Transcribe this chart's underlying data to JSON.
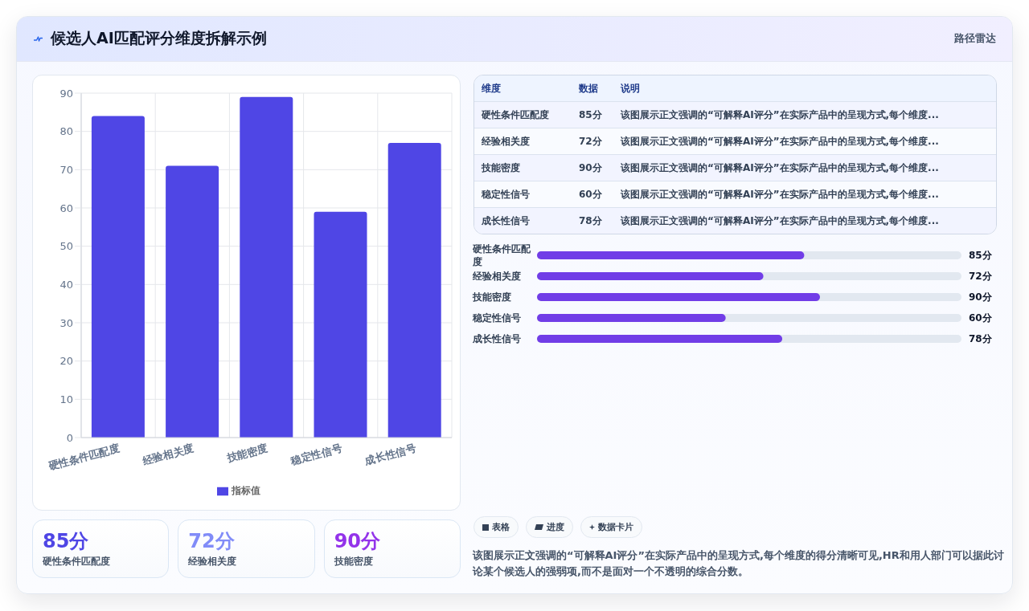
{
  "chart_data": [
    {
      "type": "other",
      "title": "候选人AI匹配评分维度拆解示例",
      "annotations": [
        "路径雷达"
      ]
    },
    {
      "type": "bar",
      "categories": [
        "硬性条件匹配度",
        "经验相关度",
        "技能密度",
        "稳定性信号",
        "成长性信号"
      ],
      "series": [
        {
          "name": "指标值",
          "color": "#4f46e5",
          "values": [
            84,
            71,
            89,
            59,
            77
          ]
        }
      ],
      "ylim": [
        0,
        90
      ],
      "yticks": [
        0,
        10,
        20,
        30,
        40,
        50,
        60,
        70,
        80,
        90
      ],
      "grid": true,
      "legend": "bottom"
    },
    {
      "type": "other",
      "categories": [
        "维度",
        "数据",
        "说明"
      ],
      "annotations": [
        "硬性条件匹配度",
        "85分",
        "该图展示正文强调的“可解释AI评分”在实际产品中的呈现方式,每个维度...",
        "经验相关度",
        "72分",
        "该图展示正文强调的“可解释AI评分”在实际产品中的呈现方式,每个维度...",
        "技能密度",
        "90分",
        "该图展示正文强调的“可解释AI评分”在实际产品中的呈现方式,每个维度...",
        "稳定性信号",
        "60分",
        "该图展示正文强调的“可解释AI评分”在实际产品中的呈现方式,每个维度...",
        "成长性信号",
        "78分",
        "该图展示正文强调的“可解释AI评分”在实际产品中的呈现方式,每个维度..."
      ]
    },
    {
      "type": "bar",
      "orientation": "horizontal",
      "categories": [
        "硬性条件匹配度",
        "经验相关度",
        "技能密度",
        "稳定性信号",
        "成长性信号"
      ],
      "values": [
        85,
        72,
        90,
        60,
        78
      ],
      "value_labels": [
        "85分",
        "72分",
        "90分",
        "60分",
        "78分"
      ],
      "color": "#713de7",
      "xlim": [
        0,
        135
      ]
    },
    {
      "type": "other",
      "categories": [
        "硬性条件匹配度",
        "经验相关度",
        "技能密度"
      ],
      "value_labels": [
        "85分",
        "72分",
        "90分"
      ]
    },
    {
      "type": "other",
      "annotations": [
        "表格",
        "进度",
        "数据卡片",
        "该图展示正文强调的“可解释AI评分”在实际产品中的呈现方式,每个维度的得分清晰可见,HR和用人部门可以据此讨论某个候选人的强弱项,而不是面对一个不透明的综合分数。"
      ]
    }
  ]
}
